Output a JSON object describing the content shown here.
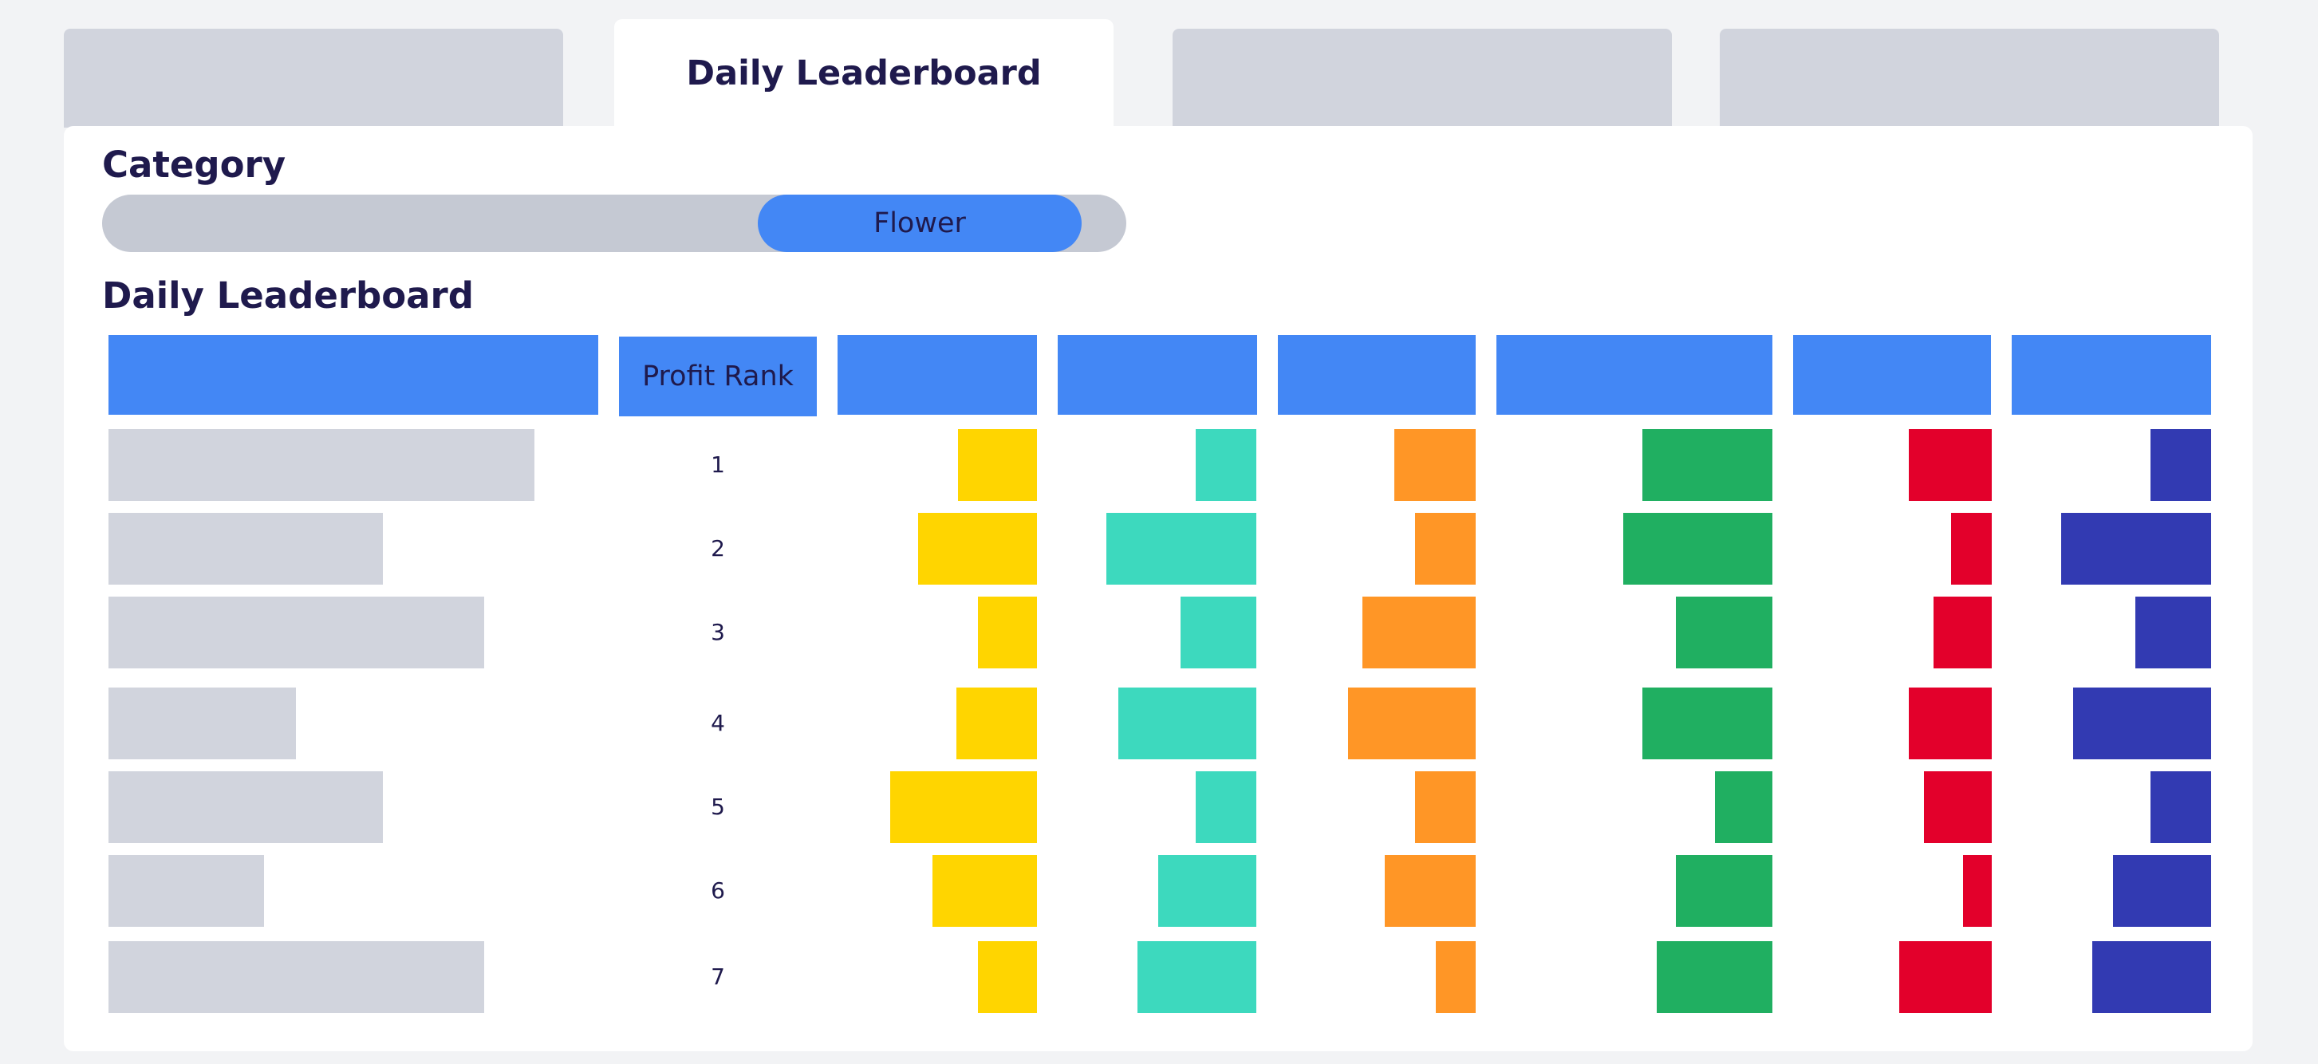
{
  "tabs": [
    {
      "label": "",
      "active": false
    },
    {
      "label": "Daily Leaderboard",
      "active": true
    },
    {
      "label": "",
      "active": false
    },
    {
      "label": "",
      "active": false
    }
  ],
  "filter": {
    "title": "Category",
    "selected": "Flower",
    "slider_position": 0.64
  },
  "leaderboard": {
    "title": "Daily Leaderboard",
    "headers": [
      "",
      "Profit Rank",
      "",
      "",
      "",
      "",
      "",
      ""
    ],
    "metric_colors": [
      "#ffd500",
      "#3dd9be",
      "#ff9626",
      "#20af61",
      "#e3002b",
      "#323ab2"
    ],
    "ranks": [
      "1",
      "2",
      "3",
      "4",
      "5",
      "6",
      "7"
    ],
    "name_bar_fill": [
      0.93,
      0.6,
      0.82,
      0.41,
      0.6,
      0.34,
      0.82
    ],
    "metrics": [
      [
        0.54,
        0.35,
        0.51,
        0.54,
        0.61,
        0.35
      ],
      [
        0.81,
        0.87,
        0.38,
        0.62,
        0.3,
        0.87
      ],
      [
        0.4,
        0.44,
        0.71,
        0.4,
        0.43,
        0.44
      ],
      [
        0.55,
        0.8,
        0.8,
        0.54,
        0.61,
        0.8
      ],
      [
        1.0,
        0.35,
        0.38,
        0.24,
        0.5,
        0.35
      ],
      [
        0.71,
        0.57,
        0.57,
        0.4,
        0.21,
        0.57
      ],
      [
        0.4,
        0.69,
        0.25,
        0.48,
        0.68,
        0.69
      ]
    ]
  }
}
